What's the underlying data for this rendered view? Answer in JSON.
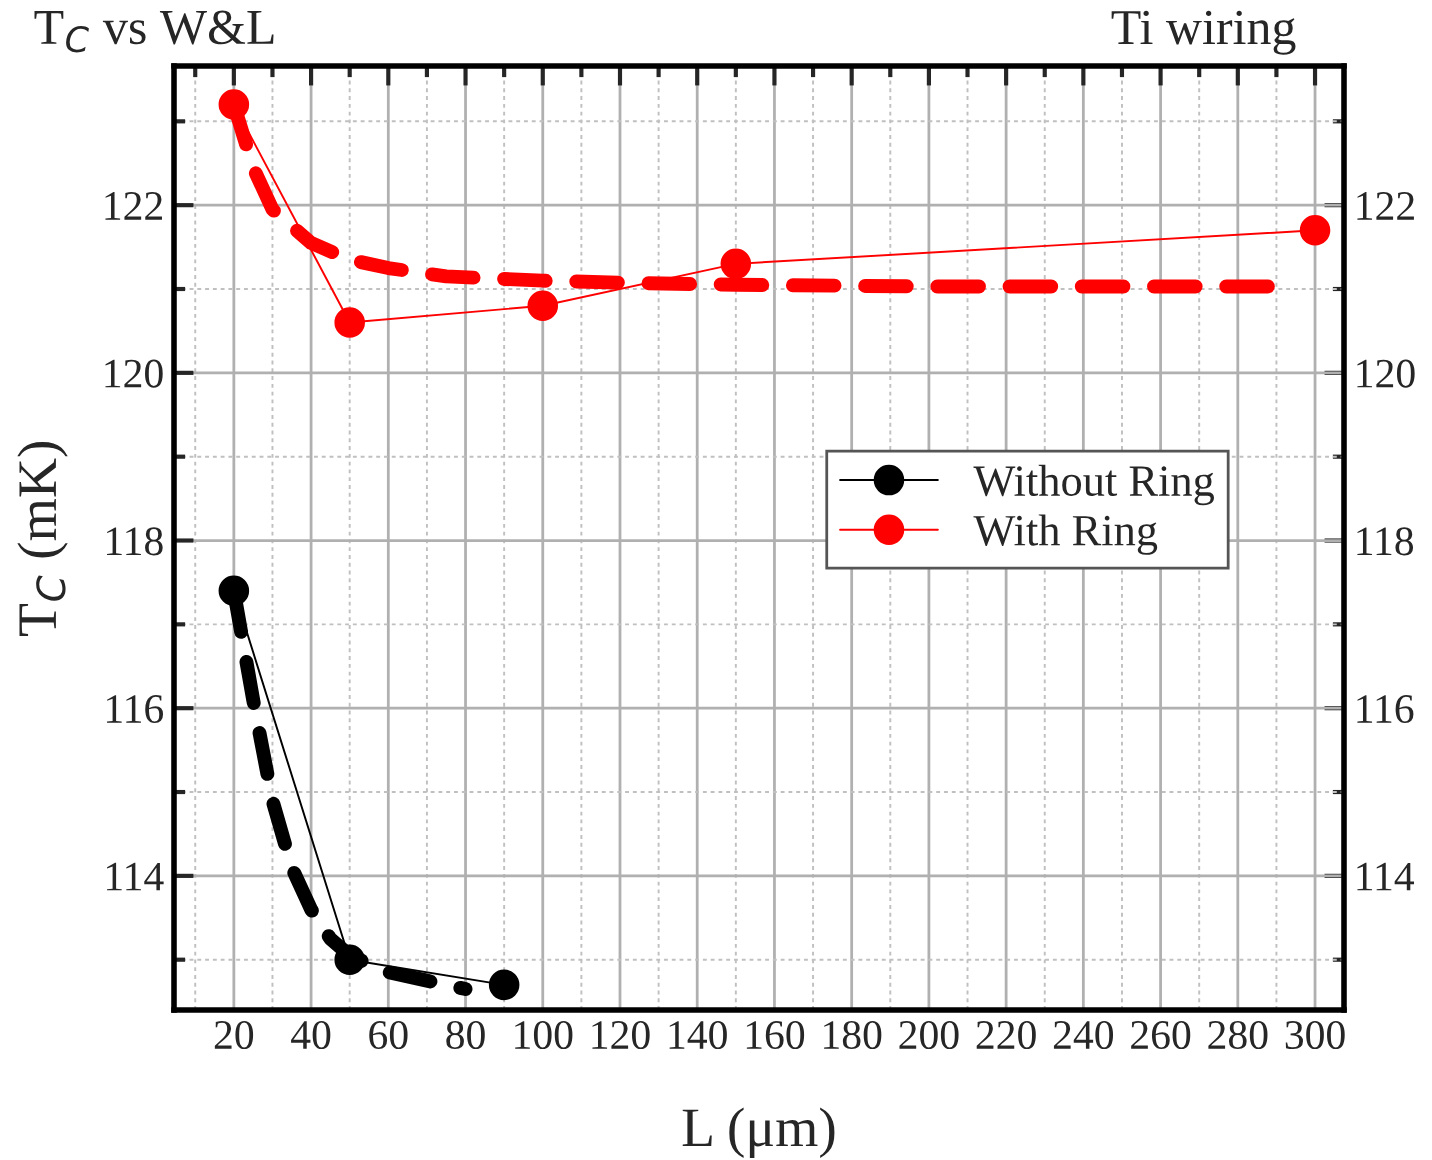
{
  "chart_data": {
    "type": "line",
    "xlabel": "L (μm)",
    "ylabel": "T$_{C}$ (mK)",
    "annotations": [
      "T$_{C}$ vs W&L",
      "Ti wiring"
    ],
    "xlim": [
      4.5,
      307.5
    ],
    "xticks": [
      20,
      40,
      60,
      80,
      100,
      120,
      140,
      160,
      180,
      200,
      220,
      240,
      260,
      280,
      300
    ],
    "ylim": [
      112.4,
      123.66
    ],
    "yticks": [
      114,
      116,
      118,
      120,
      122
    ],
    "y2lim": [
      112.4,
      123.66
    ],
    "y2ticks": [
      114,
      116,
      118,
      120,
      122
    ],
    "grid": true,
    "legend": "center right",
    "series": [
      {
        "name": "Without Ring",
        "color": "#000000",
        "marker": "circle",
        "line_style": "solid",
        "x": [
          20,
          50,
          90
        ],
        "values": [
          117.4,
          113.0,
          112.7
        ]
      },
      {
        "name": "With Ring",
        "color": "#ff0000",
        "marker": "circle",
        "line_style": "solid",
        "x": [
          20,
          50,
          100,
          150,
          300
        ],
        "values": [
          123.2,
          120.6,
          120.8,
          121.3,
          121.7
        ]
      },
      {
        "color": "#000000",
        "marker": "none",
        "line_style": "dashed",
        "x": [
          20,
          25,
          30,
          35,
          40,
          45,
          50,
          60,
          70,
          80
        ],
        "values": [
          117.4,
          116.1,
          114.9,
          114.1,
          113.6,
          113.25,
          113.05,
          112.85,
          112.75,
          112.65
        ]
      },
      {
        "color": "#ff0000",
        "marker": "none",
        "line_style": "dashed",
        "x": [
          20,
          25,
          30,
          40,
          50,
          60,
          75,
          100,
          125,
          150,
          200,
          250,
          290
        ],
        "values": [
          123.2,
          122.45,
          121.95,
          121.55,
          121.35,
          121.25,
          121.15,
          121.1,
          121.07,
          121.05,
          121.03,
          121.03,
          121.03
        ]
      }
    ]
  }
}
